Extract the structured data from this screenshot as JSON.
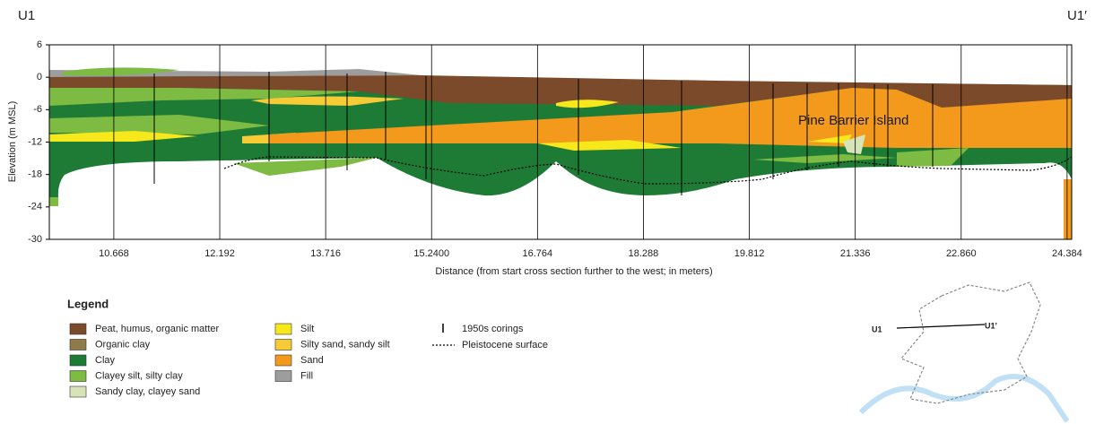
{
  "header": {
    "left_label": "U1",
    "right_label": "U1′"
  },
  "axes": {
    "y_label": "Elevation (m MSL)",
    "x_label": "Distance (from start cross section further to the west; in meters)",
    "ylim": [
      -30,
      6
    ],
    "yticks": [
      6,
      0,
      -6,
      -12,
      -18,
      -24,
      -30
    ],
    "xlim": [
      9.74,
      24.45
    ],
    "xticks": [
      10.668,
      12.192,
      13.716,
      {
        "value": 15.24,
        "label": "15.2400"
      },
      16.764,
      18.288,
      19.812,
      21.336,
      {
        "value": 22.86,
        "label": "22.860"
      },
      24.384
    ]
  },
  "annotation": "Pine Barrier Island",
  "legend": {
    "title": "Legend",
    "fills": [
      {
        "name": "Peat, humus, organic matter",
        "color": "#7b4a2b"
      },
      {
        "name": "Organic clay",
        "color": "#8f7a48"
      },
      {
        "name": "Clay",
        "color": "#1e7b36"
      },
      {
        "name": "Clayey silt, silty clay",
        "color": "#7dbb42"
      },
      {
        "name": "Sandy clay, clayey sand",
        "color": "#d6e4b8"
      },
      {
        "name": "Silt",
        "color": "#f7e81c"
      },
      {
        "name": "Silty sand, sandy silt",
        "color": "#f7cb36"
      },
      {
        "name": "Sand",
        "color": "#f39a1c"
      },
      {
        "name": "Fill",
        "color": "#9d9d9d"
      }
    ],
    "lines": [
      "1950s corings",
      "Pleistocene surface"
    ]
  },
  "map": {
    "start_label": "U1",
    "end_label": "U1’"
  }
}
